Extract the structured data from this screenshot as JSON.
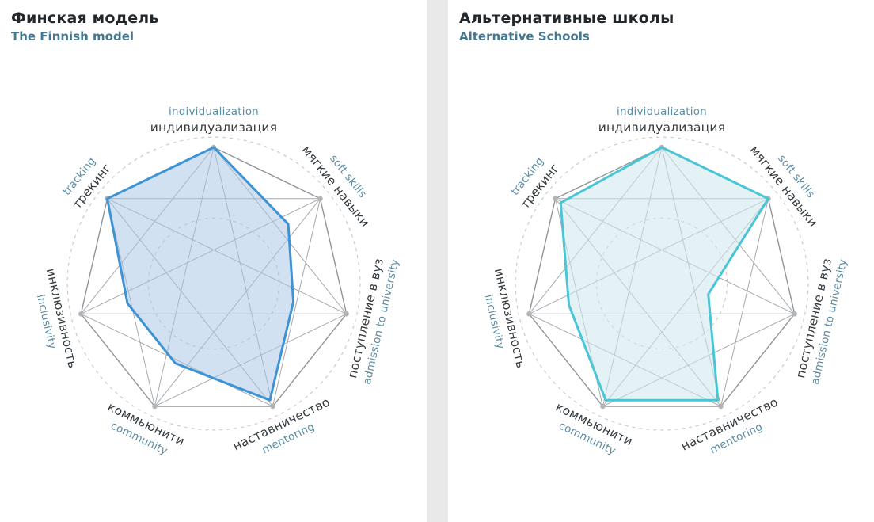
{
  "layout": {
    "background": "#e9e9e9",
    "panel_background": "#ffffff"
  },
  "style": {
    "web_line_color": "#a6aaae",
    "web_edge_color": "#90959a",
    "ring_color": "#cbcbcb",
    "vertex_dot_color": "#b4b4b4",
    "label_ru_color": "#353b3f",
    "label_en_color": "#5d8da3",
    "title_color": "#21272b",
    "subtitle_color": "#45788e"
  },
  "charts": [
    {
      "title": "Финская модель",
      "subtitle": "The Finnish model",
      "accent": "#3e93d4",
      "fill": "#a5c4e3",
      "fill_opacity": 0.5
    },
    {
      "title": "Альтернативные школы",
      "subtitle": "Alternative Schools",
      "accent": "#49c5d6",
      "fill": "#cde8ee",
      "fill_opacity": 0.55
    }
  ],
  "chart_data": [
    {
      "type": "radar",
      "title": "Финская модель",
      "subtitle": "The Finnish model",
      "categories": [
        "индивидуализация",
        "мягкие навыки",
        "поступление в вуз",
        "наставничество",
        "коммьюнити",
        "инклюзивность",
        "трекинг"
      ],
      "categories_en": [
        "individualization",
        "soft skills",
        "admission to university",
        "mentoring",
        "community",
        "inclusivity",
        "tracking"
      ],
      "values": [
        10,
        7,
        6,
        9.5,
        6.5,
        6.5,
        10
      ],
      "scale": [
        0,
        10
      ],
      "grid_rings_fraction": [
        0.48,
        1.075
      ],
      "legend": "none"
    },
    {
      "type": "radar",
      "title": "Альтернативные школы",
      "subtitle": "Alternative Schools",
      "categories": [
        "индивидуализация",
        "мягкие навыки",
        "поступление в вуз",
        "наставничество",
        "коммьюнити",
        "инклюзивность",
        "трекинг"
      ],
      "categories_en": [
        "individualization",
        "soft skills",
        "admission to university",
        "mentoring",
        "community",
        "inclusivity",
        "tracking"
      ],
      "values": [
        10,
        10,
        3.5,
        9.5,
        9.5,
        7,
        9.5
      ],
      "scale": [
        0,
        10
      ],
      "grid_rings_fraction": [
        0.48,
        1.075
      ],
      "legend": "none"
    }
  ]
}
